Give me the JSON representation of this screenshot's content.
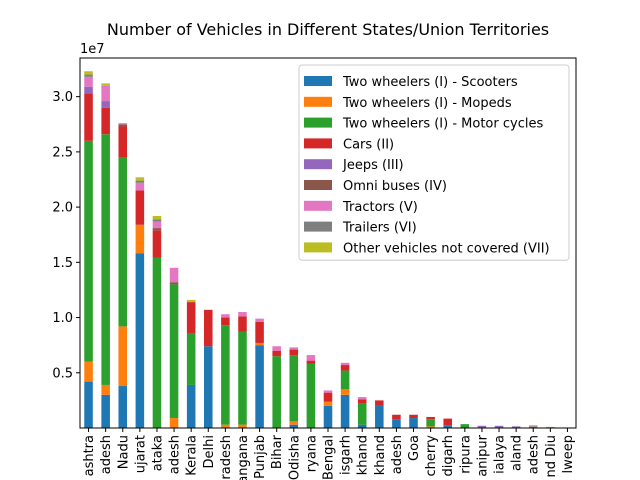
{
  "chart_data": {
    "type": "bar",
    "stacked": true,
    "title": "Number of Vehicles in Different States/Union Territories",
    "xlabel": "",
    "ylabel": "",
    "scale_label": "1e7",
    "ylim": [
      0,
      33500000
    ],
    "yticks": [
      5000000,
      10000000,
      15000000,
      20000000,
      25000000,
      30000000
    ],
    "ytick_labels": [
      "0.5",
      "1.0",
      "1.5",
      "2.0",
      "2.5",
      "3.0"
    ],
    "legend_position": "top-right",
    "categories": [
      "ashtra",
      "adesh",
      "Nadu",
      "ujarat",
      "ataka",
      "adesh",
      "Kerala",
      "Delhi",
      "radesh",
      "angana",
      "Punjab",
      "Bihar",
      "Odisha",
      "ryana",
      "Bengal",
      "isgarh",
      "khand",
      "khand",
      "adesh",
      "Goa",
      "cherry",
      "digarh",
      "ripura",
      "anipur",
      "ialaya",
      "aland",
      "adesh",
      "nd Diu",
      "lweep"
    ],
    "series": [
      {
        "name": "Two wheelers (I) - Scooters",
        "color": "#1f77b4",
        "values": [
          4200000,
          3000000,
          3800000,
          15800000,
          0,
          0,
          3900000,
          7400000,
          0,
          0,
          7500000,
          0,
          300000,
          0,
          2000000,
          3000000,
          300000,
          2000000,
          800000,
          900000,
          0,
          250000,
          0,
          0,
          0,
          0,
          0,
          0,
          0
        ]
      },
      {
        "name": "Two wheelers (I) - Mopeds",
        "color": "#ff7f0e",
        "values": [
          1800000,
          900000,
          5400000,
          2600000,
          0,
          900000,
          0,
          0,
          300000,
          300000,
          200000,
          0,
          300000,
          0,
          400000,
          500000,
          0,
          0,
          0,
          0,
          150000,
          0,
          0,
          0,
          0,
          0,
          0,
          0,
          0
        ]
      },
      {
        "name": "Two wheelers (I) - Motor cycles",
        "color": "#2ca02c",
        "values": [
          20000000,
          22700000,
          15300000,
          0,
          15400000,
          12100000,
          4700000,
          0,
          9000000,
          8400000,
          0,
          6500000,
          6000000,
          5800000,
          0,
          1700000,
          1900000,
          0,
          0,
          0,
          650000,
          0,
          350000,
          0,
          0,
          0,
          0,
          0,
          0
        ]
      },
      {
        "name": "Cars (II)",
        "color": "#d62728",
        "values": [
          4300000,
          2400000,
          2800000,
          3100000,
          2500000,
          0,
          2800000,
          3300000,
          700000,
          1400000,
          1900000,
          500000,
          500000,
          300000,
          800000,
          500000,
          400000,
          500000,
          400000,
          300000,
          200000,
          600000,
          0,
          0,
          0,
          0,
          0,
          0,
          0
        ]
      },
      {
        "name": "Jeeps (III)",
        "color": "#9467bd",
        "values": [
          600000,
          600000,
          0,
          0,
          0,
          0,
          0,
          0,
          0,
          0,
          0,
          0,
          0,
          0,
          0,
          0,
          0,
          0,
          0,
          0,
          0,
          0,
          0,
          200000,
          200000,
          150000,
          150000,
          0,
          0
        ]
      },
      {
        "name": "Omni buses (IV)",
        "color": "#8c564b",
        "values": [
          0,
          0,
          200000,
          0,
          200000,
          200000,
          0,
          0,
          0,
          0,
          0,
          0,
          0,
          0,
          0,
          0,
          0,
          0,
          0,
          0,
          0,
          0,
          0,
          0,
          0,
          0,
          0,
          0,
          0
        ]
      },
      {
        "name": "Tractors (V)",
        "color": "#e377c2",
        "values": [
          900000,
          1400000,
          100000,
          700000,
          600000,
          1300000,
          0,
          0,
          300000,
          400000,
          300000,
          400000,
          200000,
          500000,
          200000,
          200000,
          200000,
          0,
          0,
          0,
          0,
          0,
          0,
          0,
          0,
          0,
          0,
          0,
          0
        ]
      },
      {
        "name": "Trailers (VI)",
        "color": "#7f7f7f",
        "values": [
          200000,
          0,
          0,
          200000,
          200000,
          0,
          0,
          0,
          0,
          0,
          0,
          0,
          0,
          0,
          0,
          0,
          0,
          0,
          0,
          0,
          0,
          0,
          0,
          0,
          0,
          0,
          0,
          0,
          0
        ]
      },
      {
        "name": "Other vehicles not covered (VII)",
        "color": "#bcbd22",
        "values": [
          300000,
          200000,
          0,
          300000,
          300000,
          0,
          200000,
          0,
          0,
          0,
          0,
          0,
          0,
          0,
          0,
          0,
          0,
          0,
          0,
          0,
          0,
          0,
          0,
          0,
          0,
          0,
          100000,
          100000,
          50000
        ]
      }
    ]
  }
}
